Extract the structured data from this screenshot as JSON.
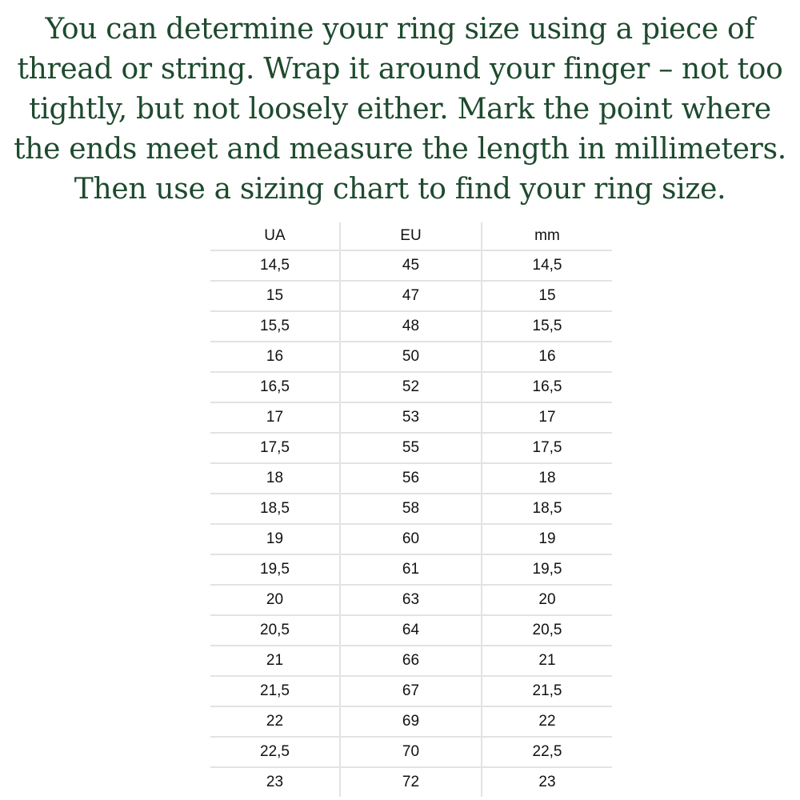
{
  "intro_lines": [
    "You can determine your ring size using a piece of",
    "thread or string. Wrap it around your finger – not too",
    "tightly, but not loosely either. Mark the point where",
    "the ends meet and measure the length in millimeters.",
    "Then use a sizing chart to find your ring size."
  ],
  "text_color": "#1e4a2e",
  "table": {
    "headers": [
      "UA",
      "EU",
      "mm"
    ],
    "rows": [
      [
        "14,5",
        "45",
        "14,5"
      ],
      [
        "15",
        "47",
        "15"
      ],
      [
        "15,5",
        "48",
        "15,5"
      ],
      [
        "16",
        "50",
        "16"
      ],
      [
        "16,5",
        "52",
        "16,5"
      ],
      [
        "17",
        "53",
        "17"
      ],
      [
        "17,5",
        "55",
        "17,5"
      ],
      [
        "18",
        "56",
        "18"
      ],
      [
        "18,5",
        "58",
        "18,5"
      ],
      [
        "19",
        "60",
        "19"
      ],
      [
        "19,5",
        "61",
        "19,5"
      ],
      [
        "20",
        "63",
        "20"
      ],
      [
        "20,5",
        "64",
        "20,5"
      ],
      [
        "21",
        "66",
        "21"
      ],
      [
        "21,5",
        "67",
        "21,5"
      ],
      [
        "22",
        "69",
        "22"
      ],
      [
        "22,5",
        "70",
        "22,5"
      ],
      [
        "23",
        "72",
        "23"
      ]
    ]
  }
}
